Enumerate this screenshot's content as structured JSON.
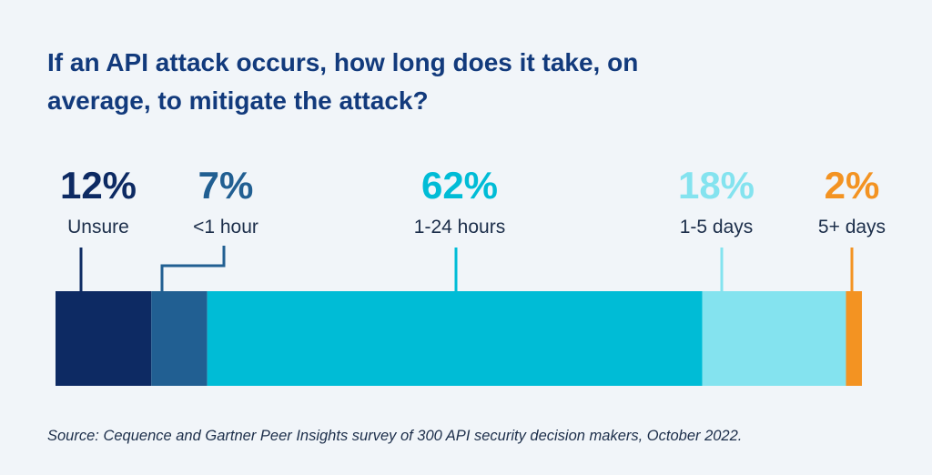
{
  "title": "If an API attack occurs, how long does it take, on average, to mitigate the attack?",
  "source": "Source: Cequence and Gartner Peer Insights survey of 300 API security decision makers, October 2022.",
  "chart_data": {
    "type": "bar",
    "orientation": "horizontal-stacked",
    "unit": "%",
    "grid": false,
    "categories": [
      "Unsure",
      "<1 hour",
      "1-24 hours",
      "1-5 days",
      "5+ days"
    ],
    "values": [
      12,
      7,
      62,
      18,
      2
    ],
    "value_labels": [
      "12%",
      "7%",
      "62%",
      "18%",
      "2%"
    ],
    "colors": [
      "#0d2a63",
      "#215f92",
      "#00bcd6",
      "#84e3ef",
      "#f39322"
    ]
  }
}
